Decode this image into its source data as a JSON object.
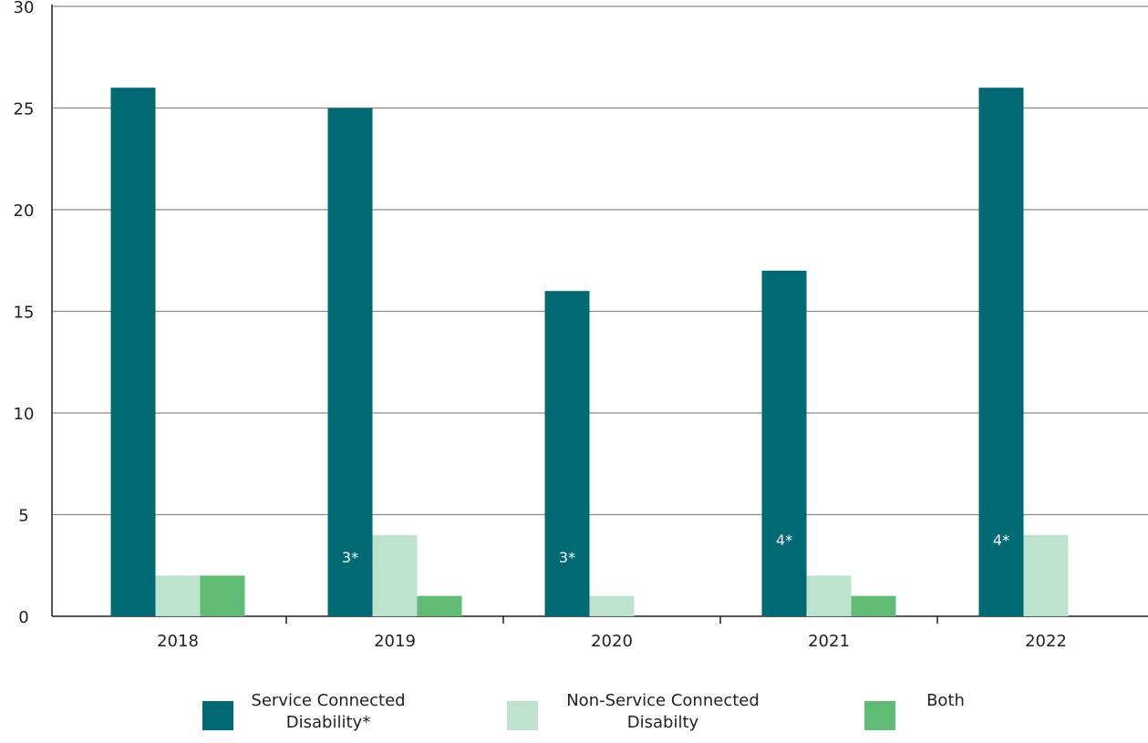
{
  "chart_data": {
    "type": "bar",
    "categories": [
      "2018",
      "2019",
      "2020",
      "2021",
      "2022"
    ],
    "series": [
      {
        "name": "Service Connected Disability*",
        "values": [
          26,
          25,
          16,
          17,
          26
        ],
        "color": "#006a74"
      },
      {
        "name": "Non-Service Connected Disabilty",
        "values": [
          2,
          4,
          1,
          2,
          4
        ],
        "color": "#bde2cd"
      },
      {
        "name": "Both",
        "values": [
          2,
          1,
          null,
          1,
          null
        ],
        "color": "#5ebc74"
      }
    ],
    "annotations": [
      {
        "category": "2019",
        "series": 0,
        "text": "3*"
      },
      {
        "category": "2020",
        "series": 0,
        "text": "3*"
      },
      {
        "category": "2021",
        "series": 0,
        "text": "4*"
      },
      {
        "category": "2022",
        "series": 0,
        "text": "4*"
      }
    ],
    "yticks": [
      "0",
      "5",
      "10",
      "15",
      "20",
      "25",
      "30"
    ],
    "ylim": [
      0,
      30
    ],
    "grid": true,
    "legend_position": "bottom"
  },
  "legend": {
    "items": [
      {
        "label": "Service Connected Disability*",
        "color": "#006a74"
      },
      {
        "label": "Non-Service Connected Disabilty",
        "color": "#bde2cd"
      },
      {
        "label": "Both",
        "color": "#5ebc74"
      }
    ]
  }
}
